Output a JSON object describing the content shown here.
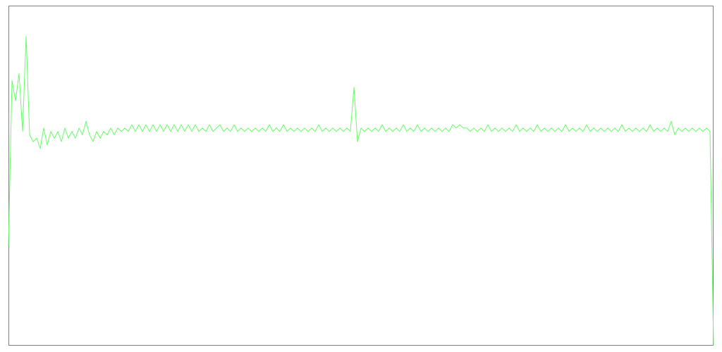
{
  "chart_data": {
    "type": "line",
    "title": "",
    "xlabel": "",
    "ylabel": "",
    "xlim": [
      0,
      200
    ],
    "ylim": [
      0,
      100
    ],
    "grid": false,
    "legend": "none",
    "series": [
      {
        "color": "#66ff66",
        "x": [
          0,
          1,
          2,
          3,
          4,
          5,
          6,
          7,
          8,
          9,
          10,
          11,
          12,
          13,
          14,
          15,
          16,
          17,
          18,
          19,
          20,
          21,
          22,
          23,
          24,
          25,
          26,
          27,
          28,
          29,
          30,
          31,
          32,
          33,
          34,
          35,
          36,
          37,
          38,
          39,
          40,
          41,
          42,
          43,
          44,
          45,
          46,
          47,
          48,
          49,
          50,
          51,
          52,
          53,
          54,
          55,
          56,
          57,
          58,
          59,
          60,
          61,
          62,
          63,
          64,
          65,
          66,
          67,
          68,
          69,
          70,
          71,
          72,
          73,
          74,
          75,
          76,
          77,
          78,
          79,
          80,
          81,
          82,
          83,
          84,
          85,
          86,
          87,
          88,
          89,
          90,
          91,
          92,
          93,
          94,
          95,
          96,
          97,
          98,
          99,
          100,
          101,
          102,
          103,
          104,
          105,
          106,
          107,
          108,
          109,
          110,
          111,
          112,
          113,
          114,
          115,
          116,
          117,
          118,
          119,
          120,
          121,
          122,
          123,
          124,
          125,
          126,
          127,
          128,
          129,
          130,
          131,
          132,
          133,
          134,
          135,
          136,
          137,
          138,
          139,
          140,
          141,
          142,
          143,
          144,
          145,
          146,
          147,
          148,
          149,
          150,
          151,
          152,
          153,
          154,
          155,
          156,
          157,
          158,
          159,
          160,
          161,
          162,
          163,
          164,
          165,
          166,
          167,
          168,
          169,
          170,
          171,
          172,
          173,
          174,
          175,
          176,
          177,
          178,
          179,
          180,
          181,
          182,
          183,
          184,
          185,
          186,
          187,
          188,
          189,
          190,
          191,
          192,
          193,
          194,
          195,
          196,
          197,
          198,
          199,
          200
        ],
        "y": [
          29,
          78,
          72,
          80,
          63,
          91,
          62,
          60,
          61,
          58,
          64,
          59,
          63,
          61,
          63,
          60,
          64,
          61,
          63,
          61,
          64,
          62,
          66,
          62,
          60,
          63,
          61,
          63,
          62,
          64,
          62,
          64,
          63,
          64,
          63,
          65,
          63,
          65,
          63,
          65,
          63,
          65,
          63,
          65,
          63,
          65,
          63,
          65,
          63,
          65,
          63,
          65,
          63,
          65,
          63,
          64,
          63,
          65,
          63,
          64,
          65,
          63,
          64,
          63,
          65,
          63,
          64,
          63,
          64,
          63,
          64,
          63,
          64,
          63,
          65,
          63,
          64,
          63,
          65,
          63,
          64,
          63,
          64,
          63,
          64,
          63,
          64,
          63,
          65,
          63,
          64,
          63,
          64,
          63,
          64,
          63,
          64,
          63,
          76,
          60,
          64,
          63,
          64,
          63,
          64,
          63,
          65,
          63,
          64,
          63,
          64,
          63,
          65,
          63,
          64,
          63,
          65,
          63,
          64,
          63,
          64,
          63,
          64,
          63,
          64,
          63,
          65,
          64,
          65,
          64,
          64,
          63,
          64,
          63,
          64,
          63,
          65,
          63,
          64,
          63,
          64,
          63,
          64,
          63,
          65,
          63,
          64,
          63,
          64,
          63,
          65,
          63,
          64,
          63,
          64,
          63,
          64,
          63,
          65,
          63,
          64,
          63,
          64,
          63,
          65,
          63,
          64,
          63,
          64,
          63,
          64,
          63,
          64,
          63,
          65,
          63,
          64,
          63,
          64,
          63,
          64,
          63,
          65,
          63,
          64,
          63,
          64,
          63,
          66,
          62,
          64,
          63,
          64,
          63,
          64,
          63,
          64,
          63,
          64,
          63,
          0
        ]
      }
    ]
  }
}
